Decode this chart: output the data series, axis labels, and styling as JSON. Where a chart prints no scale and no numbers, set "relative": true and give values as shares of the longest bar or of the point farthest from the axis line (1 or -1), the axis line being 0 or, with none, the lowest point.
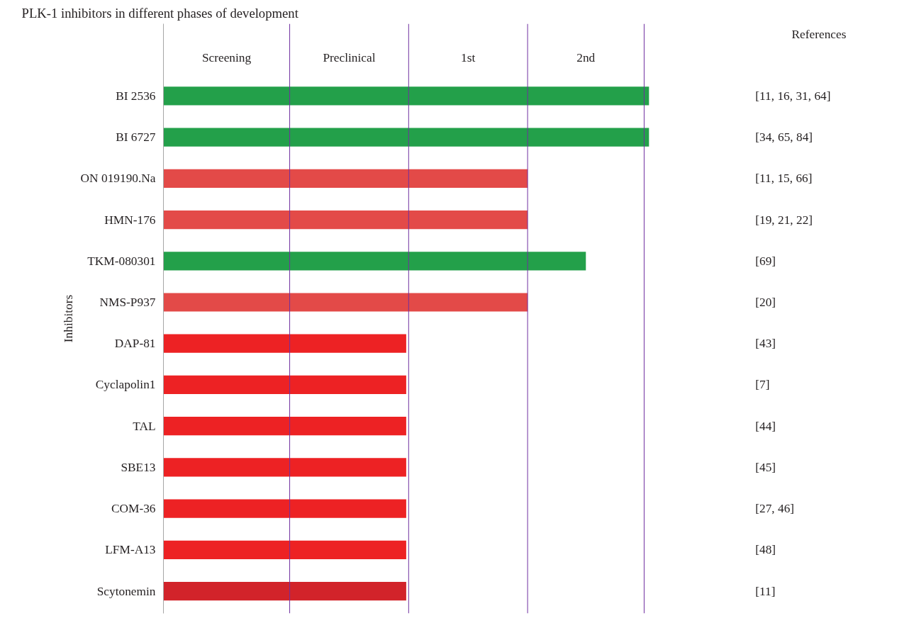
{
  "chart_data": {
    "type": "bar",
    "orientation": "horizontal",
    "relative": true,
    "title": "PLK-1 inhibitors in different phases of development",
    "ylabel": "Inhibitors",
    "categories": [
      "BI 2536",
      "BI 6727",
      "ON 019190.Na",
      "HMN-176",
      "TKM-080301",
      "NMS-P937",
      "DAP-81",
      "Cyclapolin1",
      "TAL",
      "SBE13",
      "COM-36",
      "LFM-A13",
      "Scytonemin"
    ],
    "values": [
      1,
      1,
      0.75,
      0.75,
      0.87,
      0.75,
      0.5,
      0.5,
      0.5,
      0.5,
      0.5,
      0.5,
      0.5
    ],
    "colors": [
      "#23a04a",
      "#23a04a",
      "#e34a48",
      "#e34a48",
      "#23a04a",
      "#e34a48",
      "#ed2224",
      "#ed2224",
      "#ed2224",
      "#ed2224",
      "#ed2224",
      "#ed2224",
      "#d2232a"
    ],
    "ref_lines": [
      {
        "axis": "x",
        "value": 0.26,
        "label": null,
        "color": "#7030a0"
      },
      {
        "axis": "x",
        "value": 0.505,
        "label": null,
        "color": "#7030a0"
      },
      {
        "axis": "x",
        "value": 0.75,
        "label": null,
        "color": "#7030a0"
      },
      {
        "axis": "x",
        "value": 0.99,
        "label": null,
        "color": "#7030a0"
      }
    ],
    "annotations": [
      "Screening",
      "Preclinical",
      "1st",
      "2nd",
      "References",
      "[11, 16, 31, 64]",
      "[34, 65, 84]",
      "[11, 15, 66]",
      "[19, 21, 22]",
      "[69]",
      "[20]",
      "[43]",
      "[7]",
      "[44]",
      "[45]",
      "[27, 46]",
      "[48]",
      "[11]"
    ]
  }
}
